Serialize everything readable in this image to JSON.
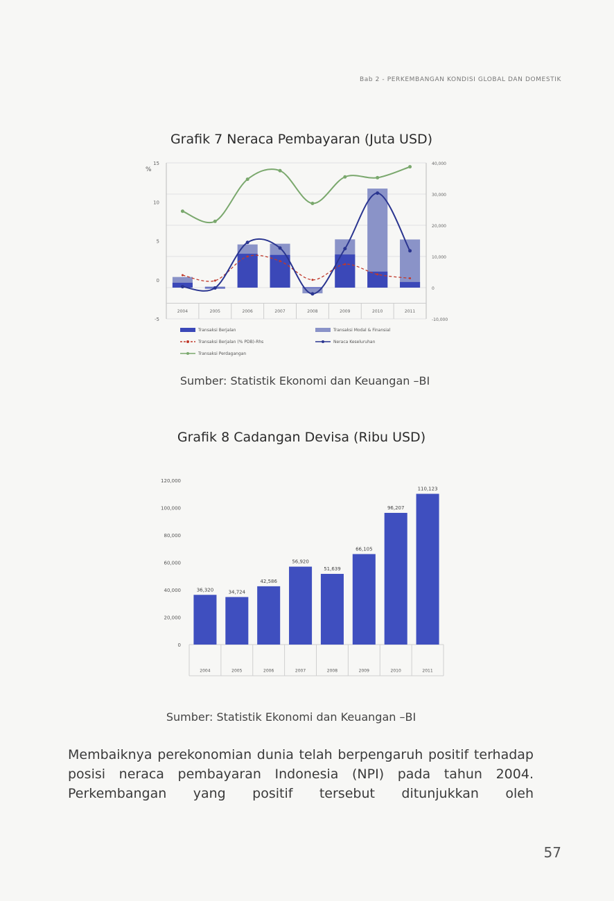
{
  "header": {
    "running_title": "Bab 2 - PERKEMBANGAN KONDISI GLOBAL DAN DOMESTIK"
  },
  "figure7": {
    "title": "Grafik 7 Neraca Pembayaran (Juta USD)",
    "source": "Sumber: Statistik Ekonomi dan Keuangan –BI"
  },
  "figure8": {
    "title": "Grafik 8 Cadangan Devisa (Ribu USD)",
    "source": "Sumber: Statistik Ekonomi dan Keuangan –BI"
  },
  "paragraph": "Membaiknya perekonomian dunia telah berpengaruh positif terhadap posisi neraca pembayaran Indonesia (NPI) pada tahun 2004. Perkembangan yang positif tersebut ditunjukkan oleh",
  "page_number": "57",
  "chart_data": [
    {
      "type": "bar",
      "title": "Grafik 7 Neraca Pembayaran (Juta USD)",
      "left_axis_unit": "%",
      "left_ylim": [
        -5,
        15
      ],
      "left_ticks": [
        "15",
        "10",
        "5",
        "0",
        "-5"
      ],
      "right_ylim": [
        -10000,
        40000
      ],
      "right_ticks": [
        "40,000",
        "30,000",
        "20,000",
        "10,000",
        "0",
        "-10,000"
      ],
      "categories": [
        "2004",
        "2005",
        "2006",
        "2007",
        "2008",
        "2009",
        "2010",
        "2011"
      ],
      "series": [
        {
          "name": "Transaksi Berjalan",
          "kind": "bar",
          "axis": "right",
          "color": "#3b48b8",
          "values": [
            1563,
            -278,
            10860,
            10490,
            126,
            10630,
            5140,
            1800
          ]
        },
        {
          "name": "Transaksi Modal & Finansial",
          "kind": "bar",
          "axis": "right",
          "color": "#8a93c8",
          "values": [
            1850,
            345,
            2990,
            3590,
            -1830,
            4850,
            26620,
            13640
          ]
        },
        {
          "name": "Transaksi Berjalan (% PDB)-Rhs",
          "kind": "line",
          "axis": "left",
          "color": "#c0392b",
          "values": [
            0.6,
            -0.1,
            3.0,
            2.4,
            0.0,
            2.0,
            0.7,
            0.2
          ]
        },
        {
          "name": "Neraca Keseluruhan",
          "kind": "line",
          "axis": "right",
          "color": "#2a3590",
          "values": [
            300,
            -100,
            14500,
            12700,
            -2000,
            12500,
            30300,
            11800
          ]
        },
        {
          "name": "Transaksi Perdagangan",
          "kind": "line",
          "axis": "left",
          "color": "#7aa86d",
          "values": [
            8.8,
            7.5,
            12.9,
            14.0,
            9.8,
            13.2,
            13.1,
            14.5
          ]
        }
      ],
      "colors": {
        "grid": "#e2e2e2",
        "bar_dark": "#3b48b8",
        "bar_light": "#8a93c8"
      }
    },
    {
      "type": "bar",
      "title": "Grafik 8 Cadangan Devisa (Ribu USD)",
      "categories": [
        "2004",
        "2005",
        "2006",
        "2007",
        "2008",
        "2009",
        "2010",
        "2011"
      ],
      "values": [
        36320,
        34724,
        42586,
        56920,
        51639,
        66105,
        96207,
        110123
      ],
      "value_labels": [
        "36,320",
        "34,724",
        "42,586",
        "56,920",
        "51,639",
        "66,105",
        "96,207",
        "110,123"
      ],
      "ylim": [
        0,
        120000
      ],
      "y_ticks": [
        "120,000",
        "100,000",
        "80,000",
        "60,000",
        "40,000",
        "20,000",
        "0"
      ],
      "colors": {
        "bar": "#3f4fbf",
        "grid": "#cfcfcf"
      }
    }
  ]
}
